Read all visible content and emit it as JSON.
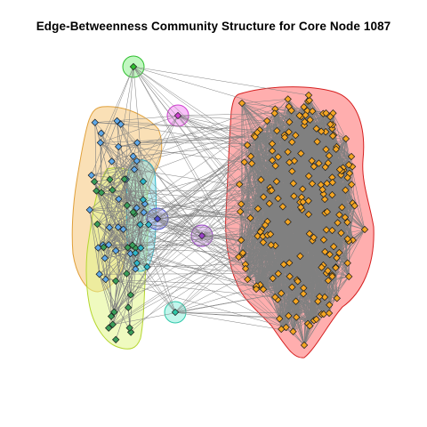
{
  "figure": {
    "title": "Edge-Betweenness Community Structure for Core Node 1087",
    "background": "#ffffff",
    "edge_color": "#808080",
    "node_border_color": "#1a1a1a"
  },
  "communities": [
    {
      "name": "large-core",
      "fill": "#ff6b6b",
      "stroke": "#d62020",
      "node_color": "#f5a623",
      "approx_node_count": 200
    },
    {
      "name": "left-orange",
      "fill": "#f6c67a",
      "stroke": "#e0a03a",
      "node_color": "#5fa8e8",
      "approx_node_count": 30
    },
    {
      "name": "left-yellowgreen",
      "fill": "#e2f58a",
      "stroke": "#b5d630",
      "node_color": "#3a9e5a",
      "approx_node_count": 25
    },
    {
      "name": "left-cyan",
      "fill": "#8be0ea",
      "stroke": "#2fb6c8",
      "node_color": "#2fb6c8",
      "approx_node_count": 8
    },
    {
      "name": "top-green",
      "fill": "#8ef08e",
      "stroke": "#2fbf2f",
      "node_color": "#2fbf2f",
      "approx_node_count": 1
    },
    {
      "name": "top-magenta",
      "fill": "#f28ef2",
      "stroke": "#d040d0",
      "node_color": "#d040d0",
      "approx_node_count": 1
    },
    {
      "name": "mid-blue",
      "fill": "#a7a7f0",
      "stroke": "#5050d0",
      "node_color": "#5050d0",
      "approx_node_count": 1
    },
    {
      "name": "mid-purple",
      "fill": "#d3a4ec",
      "stroke": "#9a40c8",
      "node_color": "#9a40c8",
      "approx_node_count": 1
    },
    {
      "name": "bottom-teal",
      "fill": "#8eeedd",
      "stroke": "#2fc8aa",
      "node_color": "#2fc8aa",
      "approx_node_count": 1
    }
  ]
}
